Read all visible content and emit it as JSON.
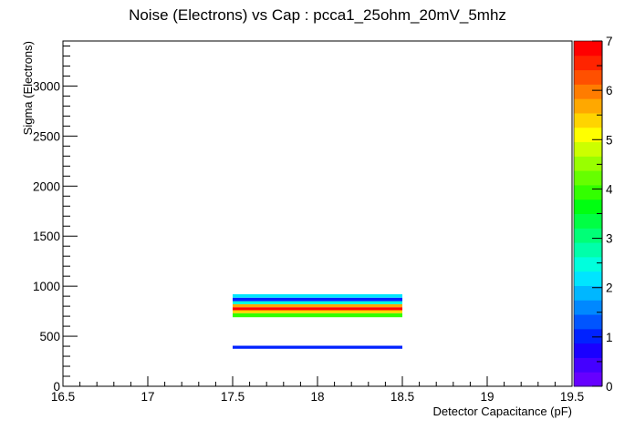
{
  "chart_data": {
    "type": "heatmap",
    "title": "Noise (Electrons) vs Cap : pcca1_25ohm_20mV_5mhz",
    "xlabel": "Detector Capacitance (pF)",
    "ylabel": "Sigma (Electrons)",
    "xlim": [
      16.5,
      19.5
    ],
    "ylim": [
      0,
      3450
    ],
    "x_ticks": [
      {
        "value": 16.5,
        "label": "16.5"
      },
      {
        "value": 17,
        "label": "17"
      },
      {
        "value": 17.5,
        "label": "17.5"
      },
      {
        "value": 18,
        "label": "18"
      },
      {
        "value": 18.5,
        "label": "18.5"
      },
      {
        "value": 19,
        "label": "19"
      },
      {
        "value": 19.5,
        "label": "19.5"
      }
    ],
    "y_ticks": [
      {
        "value": 0,
        "label": "0"
      },
      {
        "value": 500,
        "label": "500"
      },
      {
        "value": 1000,
        "label": "1000"
      },
      {
        "value": 1500,
        "label": "1500"
      },
      {
        "value": 2000,
        "label": "2000"
      },
      {
        "value": 2500,
        "label": "2500"
      },
      {
        "value": 3000,
        "label": "3000"
      }
    ],
    "z_range": [
      0,
      7
    ],
    "z_ticks": [
      {
        "value": 0,
        "label": "0"
      },
      {
        "value": 1,
        "label": "1"
      },
      {
        "value": 2,
        "label": "2"
      },
      {
        "value": 3,
        "label": "3"
      },
      {
        "value": 4,
        "label": "4"
      },
      {
        "value": 5,
        "label": "5"
      },
      {
        "value": 6,
        "label": "6"
      },
      {
        "value": 7,
        "label": "7"
      }
    ],
    "palette": [
      "#6600ff",
      "#4400ff",
      "#1a00ff",
      "#0022ff",
      "#0055ff",
      "#0088ff",
      "#00b7ff",
      "#00e5ff",
      "#00ffdd",
      "#00ffaa",
      "#00ff77",
      "#00ff44",
      "#00ff11",
      "#33ff00",
      "#66ff00",
      "#99ff00",
      "#ccff00",
      "#ffff00",
      "#ffd400",
      "#ffa800",
      "#ff7c00",
      "#ff5000",
      "#ff2400",
      "#ff0000"
    ],
    "cells": [
      {
        "x0": 17.5,
        "x1": 18.5,
        "y0": 375,
        "y1": 405,
        "z": 1.0
      },
      {
        "x0": 17.5,
        "x1": 18.5,
        "y0": 690,
        "y1": 730,
        "z": 4.0
      },
      {
        "x0": 17.5,
        "x1": 18.5,
        "y0": 730,
        "y1": 760,
        "z": 5.3
      },
      {
        "x0": 17.5,
        "x1": 18.5,
        "y0": 760,
        "y1": 790,
        "z": 6.8
      },
      {
        "x0": 17.5,
        "x1": 18.5,
        "y0": 790,
        "y1": 820,
        "z": 5.8
      },
      {
        "x0": 17.5,
        "x1": 18.5,
        "y0": 820,
        "y1": 850,
        "z": 2.5
      },
      {
        "x0": 17.5,
        "x1": 18.5,
        "y0": 850,
        "y1": 885,
        "z": 1.0
      },
      {
        "x0": 17.5,
        "x1": 18.5,
        "y0": 885,
        "y1": 920,
        "z": 2.1
      }
    ]
  }
}
